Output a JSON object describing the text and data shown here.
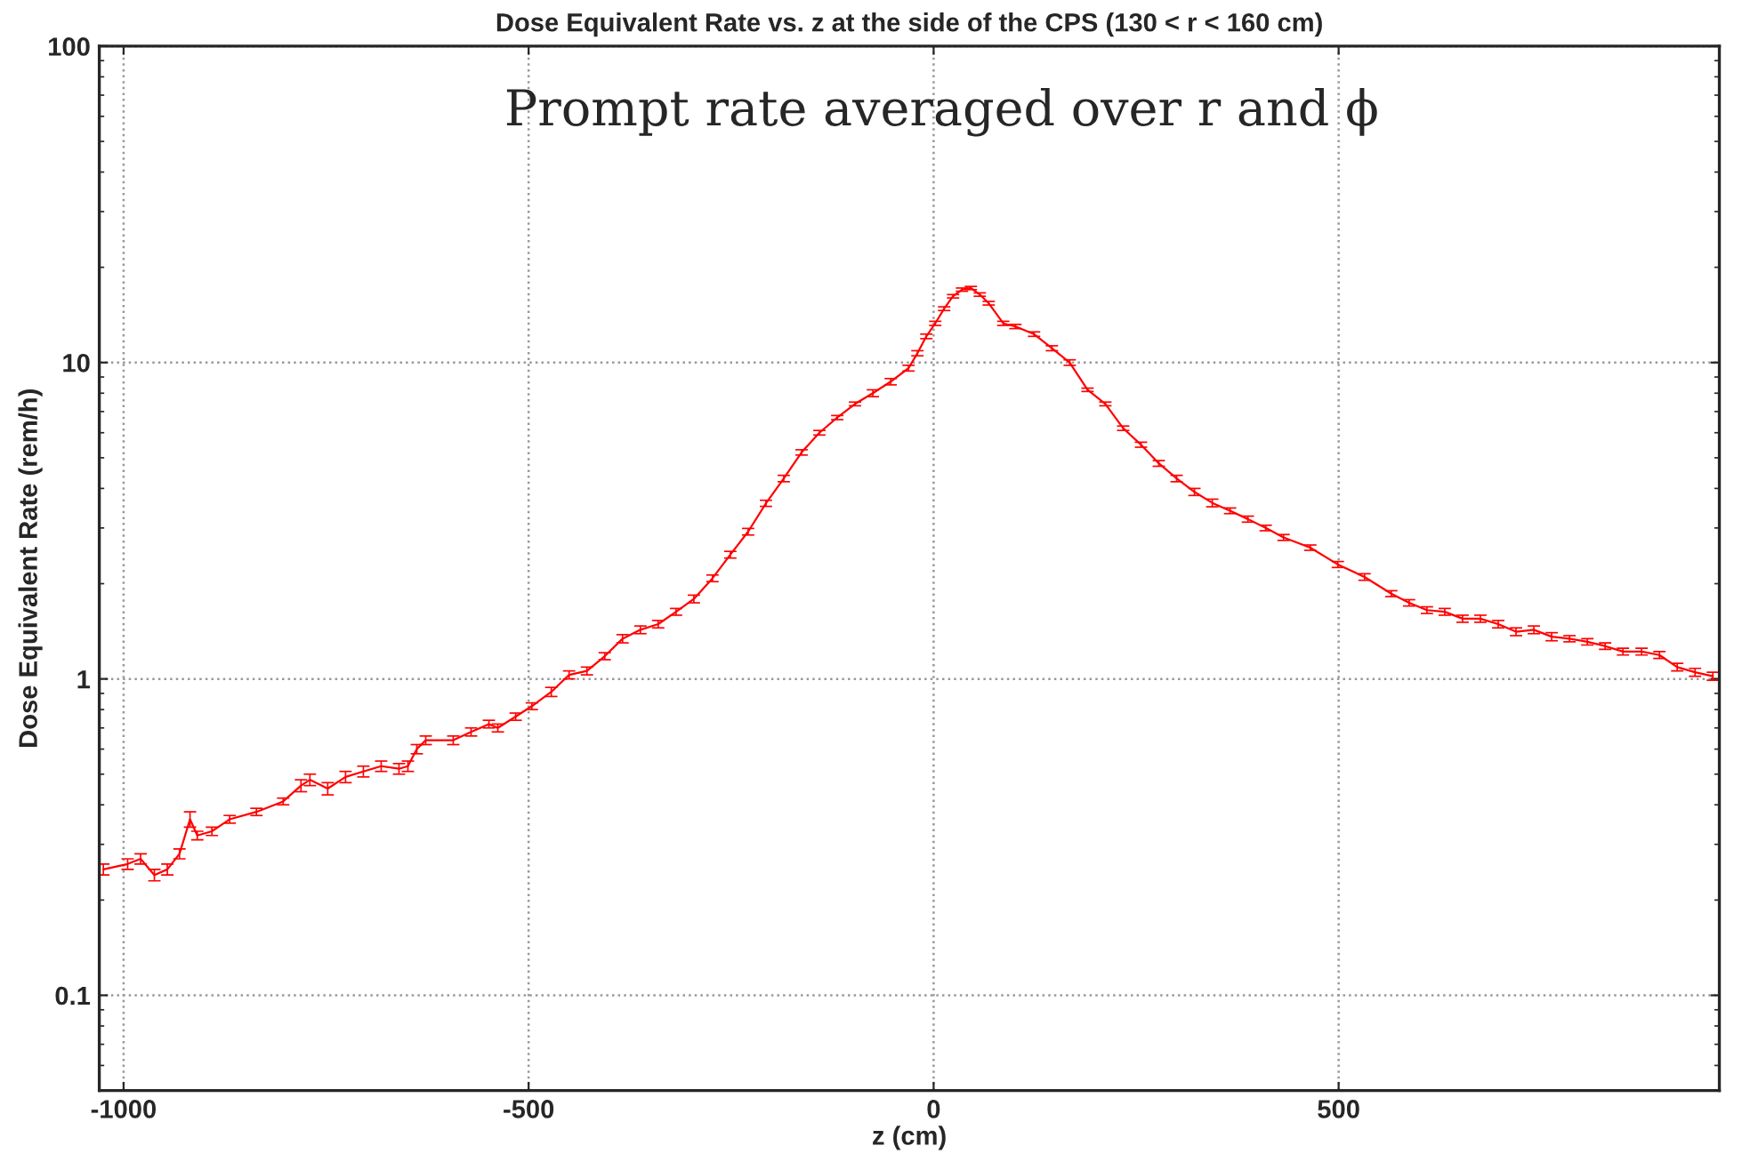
{
  "chart_data": {
    "type": "line",
    "title": "Dose Equivalent Rate vs. z at the side of the CPS (130 < r < 160 cm)",
    "xlabel": "z (cm)",
    "ylabel": "Dose Equivalent Rate (rem/h)",
    "annotations": [
      "Prompt rate averaged over r and ϕ"
    ],
    "series": [
      {
        "color": "#ff0000",
        "x": [
          -1025,
          -995,
          -979,
          -962,
          -946,
          -931,
          -918,
          -909,
          -891,
          -869,
          -836,
          -803,
          -781,
          -770,
          -748,
          -726,
          -704,
          -682,
          -660,
          -649,
          -638,
          -627,
          -593,
          -571,
          -549,
          -538,
          -516,
          -496,
          -472,
          -450,
          -428,
          -406,
          -384,
          -362,
          -340,
          -318,
          -296,
          -273,
          -251,
          -229,
          -207,
          -185,
          -163,
          -141,
          -119,
          -97,
          -75,
          -53,
          -31,
          -20,
          -9,
          2,
          13,
          24,
          35,
          46,
          57,
          68,
          86,
          101,
          124,
          146,
          168,
          190,
          212,
          234,
          256,
          278,
          300,
          322,
          344,
          366,
          388,
          410,
          432,
          465,
          499,
          532,
          565,
          587,
          609,
          631,
          653,
          675,
          697,
          719,
          741,
          763,
          785,
          807,
          829,
          851,
          874,
          896,
          918,
          940,
          962
        ],
        "values": [
          0.25,
          0.26,
          0.27,
          0.24,
          0.25,
          0.28,
          0.36,
          0.32,
          0.33,
          0.36,
          0.38,
          0.41,
          0.46,
          0.48,
          0.45,
          0.49,
          0.51,
          0.53,
          0.52,
          0.53,
          0.6,
          0.64,
          0.64,
          0.68,
          0.72,
          0.7,
          0.76,
          0.82,
          0.91,
          1.03,
          1.06,
          1.18,
          1.34,
          1.43,
          1.49,
          1.63,
          1.79,
          2.08,
          2.47,
          2.92,
          3.59,
          4.3,
          5.2,
          6.0,
          6.7,
          7.4,
          8.0,
          8.7,
          9.6,
          10.7,
          12.1,
          13.3,
          14.8,
          16.2,
          17.0,
          17.2,
          16.4,
          15.4,
          13.3,
          13.0,
          12.3,
          11.1,
          10.0,
          8.2,
          7.4,
          6.2,
          5.5,
          4.8,
          4.3,
          3.9,
          3.6,
          3.4,
          3.2,
          3.0,
          2.8,
          2.6,
          2.3,
          2.1,
          1.86,
          1.74,
          1.65,
          1.63,
          1.55,
          1.55,
          1.49,
          1.41,
          1.43,
          1.36,
          1.34,
          1.31,
          1.27,
          1.22,
          1.22,
          1.19,
          1.09,
          1.05,
          1.02
        ],
        "errors": [
          0.01,
          0.01,
          0.01,
          0.01,
          0.01,
          0.01,
          0.02,
          0.01,
          0.01,
          0.01,
          0.01,
          0.01,
          0.02,
          0.02,
          0.02,
          0.02,
          0.02,
          0.02,
          0.02,
          0.02,
          0.02,
          0.02,
          0.02,
          0.02,
          0.02,
          0.02,
          0.02,
          0.02,
          0.03,
          0.03,
          0.03,
          0.03,
          0.04,
          0.04,
          0.04,
          0.04,
          0.05,
          0.05,
          0.06,
          0.07,
          0.08,
          0.1,
          0.1,
          0.1,
          0.1,
          0.1,
          0.2,
          0.2,
          0.2,
          0.2,
          0.2,
          0.2,
          0.2,
          0.2,
          0.2,
          0.2,
          0.2,
          0.2,
          0.2,
          0.2,
          0.2,
          0.2,
          0.2,
          0.1,
          0.1,
          0.1,
          0.1,
          0.1,
          0.1,
          0.1,
          0.1,
          0.07,
          0.07,
          0.06,
          0.06,
          0.05,
          0.05,
          0.05,
          0.04,
          0.04,
          0.04,
          0.04,
          0.04,
          0.04,
          0.04,
          0.04,
          0.04,
          0.04,
          0.03,
          0.03,
          0.03,
          0.03,
          0.03,
          0.03,
          0.03,
          0.03,
          0.03
        ]
      }
    ],
    "xlim": [
      -1030,
      970
    ],
    "xticks": [
      -1000,
      -500,
      0,
      500
    ],
    "ylim": [
      0.05,
      100
    ],
    "yticks": [
      0.1,
      1,
      10,
      100
    ],
    "log": "y",
    "grid": true,
    "line_style": "solid",
    "marker": "none"
  }
}
